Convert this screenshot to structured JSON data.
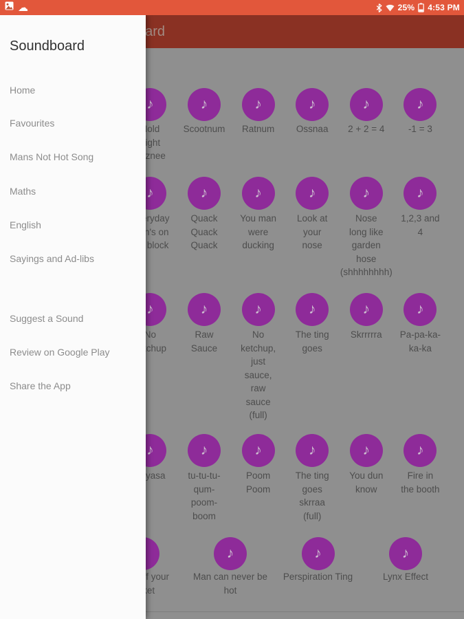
{
  "colors": {
    "status_bar_bg": "#E2573B",
    "toolbar_bg": "#8A3123",
    "content_bg": "#8F8F8F",
    "drawer_bg": "#FBFBFB",
    "sound_circle": "#8E2B99",
    "note_color": "#CDBFD0"
  },
  "status_bar": {
    "time": "4:53 PM",
    "battery_percent": "25%",
    "left_icons": [
      "photo-icon",
      "cloud-icon"
    ],
    "right_icons": [
      "bluetooth-icon",
      "wifi-icon",
      "battery-icon"
    ]
  },
  "toolbar": {
    "title": "Soundboard"
  },
  "drawer": {
    "title": "Soundboard",
    "items": [
      "Home",
      "Favourites",
      "Mans Not Hot Song",
      "Maths",
      "English",
      "Sayings and Ad-libs",
      "Suggest a Sound",
      "Review on Google Play",
      "Share the App"
    ]
  },
  "sound_grid": {
    "note_icon": "♪",
    "rows": [
      {
        "sounds": [
          "Hold\nTight\nAsznee",
          "Scootnum",
          "Ratnum",
          "Ossnaa",
          "2 + 2 = 4",
          "-1 = 3"
        ]
      },
      {
        "sounds": [
          "Everyday\nman's on\nthe block",
          "Quack\nQuack\nQuack",
          "You man\nwere\nducking",
          "Look at\nyour\nnose",
          "Nose\nlong like\ngarden\nhose\n(shhhhhhhh)",
          "1,2,3 and\n4"
        ]
      },
      {
        "sounds": [
          "No\nketchup",
          "Raw\nSauce",
          "No\nketchup,\njust\nsauce,\nraw\nsauce\n(full)",
          "The ting\ngoes",
          "Skrrrrra",
          "Pa-pa-ka-\nka-ka"
        ]
      },
      {
        "sounds": [
          "Skyasa",
          "tu-tu-tu-\nqum-\npoom-\nboom",
          "Poom\nPoom",
          "The ting\ngoes\nskrraa\n(full)",
          "You dun\nknow",
          "Fire in\nthe booth"
        ]
      },
      {
        "sounds": [
          "Take off your\njacket",
          "Man can never be\nhot",
          "Perspiration Ting",
          "Lynx Effect"
        ]
      }
    ]
  }
}
